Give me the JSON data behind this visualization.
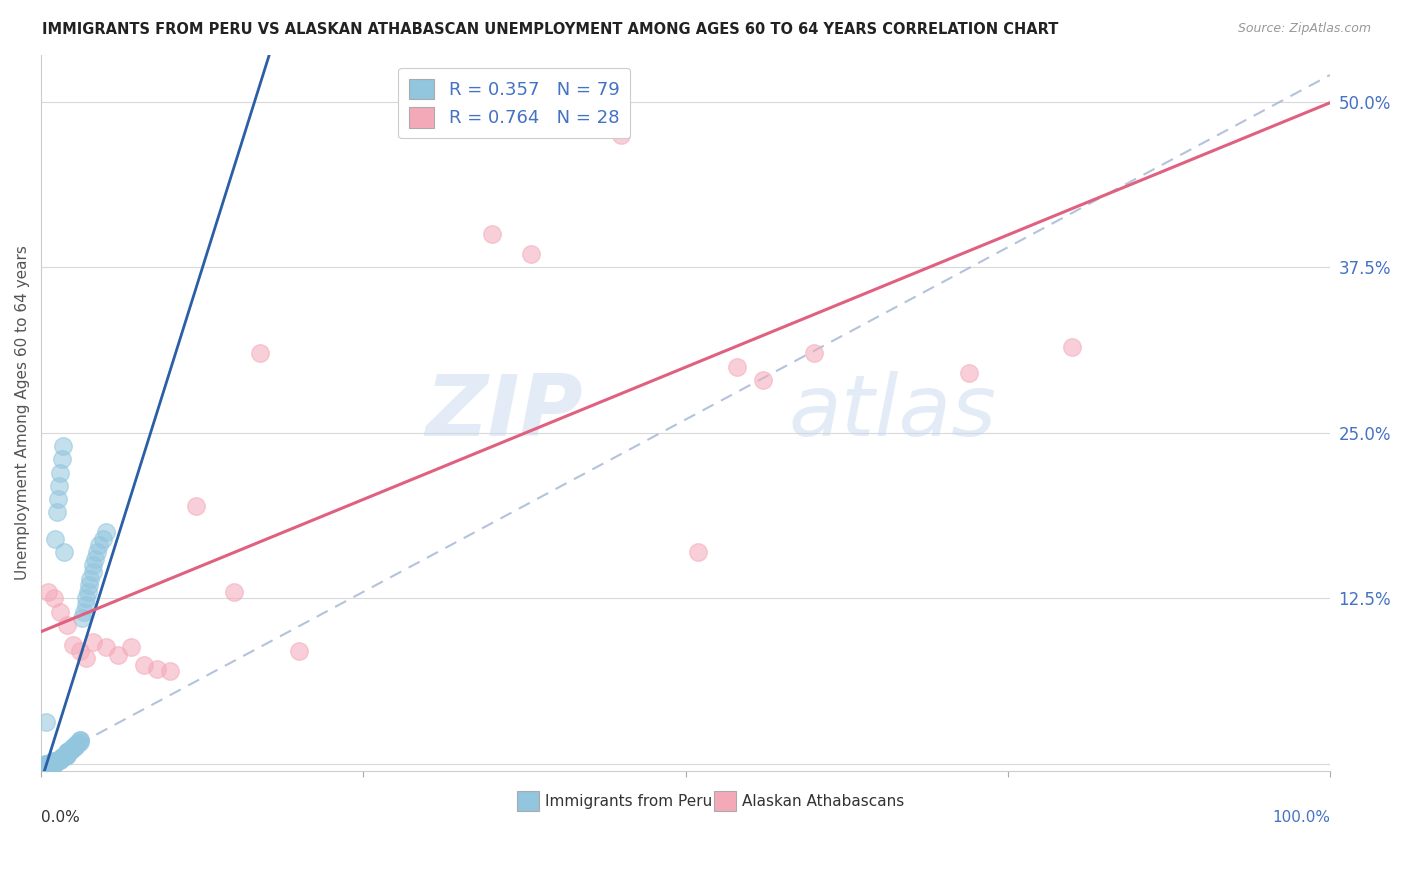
{
  "title": "IMMIGRANTS FROM PERU VS ALASKAN ATHABASCAN UNEMPLOYMENT AMONG AGES 60 TO 64 YEARS CORRELATION CHART",
  "source": "Source: ZipAtlas.com",
  "xlabel": "",
  "ylabel": "Unemployment Among Ages 60 to 64 years",
  "legend_labels": [
    "Immigrants from Peru",
    "Alaskan Athabascans"
  ],
  "legend_R": [
    0.357,
    0.764
  ],
  "legend_N": [
    79,
    28
  ],
  "blue_color": "#92C5DE",
  "pink_color": "#F4A9B8",
  "blue_line_color": "#2B5FA5",
  "pink_line_color": "#E06080",
  "dashed_line_color": "#9BAFD0",
  "watermark_zip": "ZIP",
  "watermark_atlas": "atlas",
  "xlim": [
    0,
    1.0
  ],
  "ylim": [
    -0.005,
    0.535
  ],
  "yticks": [
    0.0,
    0.125,
    0.25,
    0.375,
    0.5
  ],
  "ytick_labels": [
    "",
    "12.5%",
    "25.0%",
    "37.5%",
    "50.0%"
  ],
  "xtick_labels_left": "0.0%",
  "xtick_labels_right": "100.0%",
  "blue_x": [
    0.005,
    0.005,
    0.007,
    0.008,
    0.008,
    0.009,
    0.01,
    0.01,
    0.01,
    0.01,
    0.01,
    0.01,
    0.012,
    0.012,
    0.013,
    0.014,
    0.015,
    0.015,
    0.015,
    0.015,
    0.016,
    0.016,
    0.017,
    0.017,
    0.018,
    0.018,
    0.019,
    0.019,
    0.02,
    0.02,
    0.02,
    0.02,
    0.02,
    0.02,
    0.02,
    0.021,
    0.021,
    0.022,
    0.022,
    0.023,
    0.023,
    0.024,
    0.025,
    0.025,
    0.026,
    0.026,
    0.027,
    0.028,
    0.029,
    0.03,
    0.03,
    0.03,
    0.032,
    0.033,
    0.035,
    0.035,
    0.036,
    0.037,
    0.038,
    0.04,
    0.04,
    0.042,
    0.043,
    0.045,
    0.048,
    0.05,
    0.003,
    0.004,
    0.006,
    0.008,
    0.009,
    0.011,
    0.012,
    0.013,
    0.014,
    0.015,
    0.016,
    0.017,
    0.018,
    0.004
  ],
  "blue_y": [
    0.0,
    0.0,
    0.0,
    0.0,
    0.0,
    0.0,
    0.0,
    0.0,
    0.0,
    0.0,
    0.0,
    0.002,
    0.002,
    0.002,
    0.003,
    0.003,
    0.003,
    0.003,
    0.004,
    0.004,
    0.005,
    0.005,
    0.005,
    0.005,
    0.006,
    0.006,
    0.006,
    0.007,
    0.007,
    0.007,
    0.008,
    0.008,
    0.008,
    0.009,
    0.009,
    0.009,
    0.01,
    0.01,
    0.01,
    0.011,
    0.011,
    0.012,
    0.012,
    0.013,
    0.013,
    0.014,
    0.015,
    0.015,
    0.016,
    0.017,
    0.018,
    0.018,
    0.11,
    0.115,
    0.12,
    0.125,
    0.13,
    0.135,
    0.14,
    0.145,
    0.15,
    0.155,
    0.16,
    0.165,
    0.17,
    0.175,
    0.0,
    0.0,
    0.001,
    0.001,
    0.002,
    0.17,
    0.19,
    0.2,
    0.21,
    0.22,
    0.23,
    0.24,
    0.16,
    0.032
  ],
  "pink_x": [
    0.005,
    0.01,
    0.015,
    0.02,
    0.025,
    0.03,
    0.035,
    0.04,
    0.05,
    0.06,
    0.07,
    0.08,
    0.09,
    0.1,
    0.12,
    0.15,
    0.17,
    0.2,
    0.35,
    0.38,
    0.43,
    0.45,
    0.51,
    0.54,
    0.56,
    0.6,
    0.72,
    0.8
  ],
  "pink_y": [
    0.13,
    0.125,
    0.115,
    0.105,
    0.09,
    0.085,
    0.08,
    0.092,
    0.088,
    0.082,
    0.088,
    0.075,
    0.072,
    0.07,
    0.195,
    0.13,
    0.31,
    0.085,
    0.4,
    0.385,
    0.49,
    0.475,
    0.16,
    0.3,
    0.29,
    0.31,
    0.295,
    0.315
  ]
}
